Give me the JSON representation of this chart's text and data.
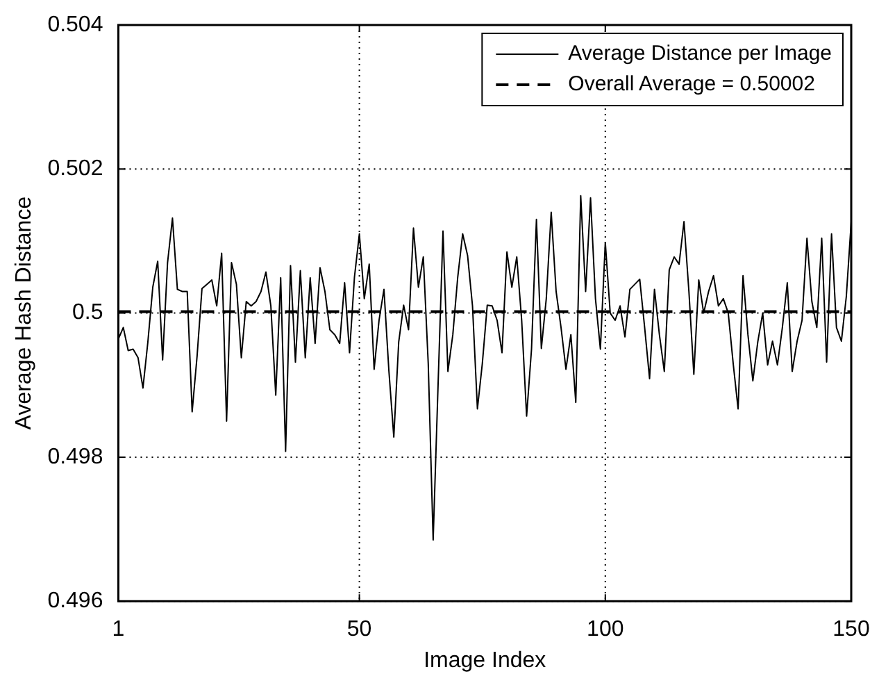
{
  "chart_data": {
    "type": "line",
    "xlabel": "Image Index",
    "ylabel": "Average Hash Distance",
    "xlim": [
      1,
      150
    ],
    "xticks": [
      1,
      50,
      100,
      150
    ],
    "ylim": [
      0.496,
      0.504
    ],
    "yticks": [
      0.496,
      0.498,
      0.5,
      0.502,
      0.504
    ],
    "grid": true,
    "legend": "top right",
    "marker": "none",
    "series": [
      {
        "name": "Average Distance per Image",
        "color": "#000000",
        "line_style": "solid",
        "x": [
          1,
          2,
          3,
          4,
          5,
          6,
          7,
          8,
          9,
          10,
          11,
          12,
          13,
          14,
          15,
          16,
          17,
          18,
          19,
          20,
          21,
          22,
          23,
          24,
          25,
          26,
          27,
          28,
          29,
          30,
          31,
          32,
          33,
          34,
          35,
          36,
          37,
          38,
          39,
          40,
          41,
          42,
          43,
          44,
          45,
          46,
          47,
          48,
          49,
          50,
          51,
          52,
          53,
          54,
          55,
          56,
          57,
          58,
          59,
          60,
          61,
          62,
          63,
          64,
          65,
          66,
          67,
          68,
          69,
          70,
          71,
          72,
          73,
          74,
          75,
          76,
          77,
          78,
          79,
          80,
          81,
          82,
          83,
          84,
          85,
          86,
          87,
          88,
          89,
          90,
          91,
          92,
          93,
          94,
          95,
          96,
          97,
          98,
          99,
          100,
          101,
          102,
          103,
          104,
          105,
          106,
          107,
          108,
          109,
          110,
          111,
          112,
          113,
          114,
          115,
          116,
          117,
          118,
          119,
          120,
          121,
          122,
          123,
          124,
          125,
          126,
          127,
          128,
          129,
          130,
          131,
          132,
          133,
          134,
          135,
          136,
          137,
          138,
          139,
          140,
          141,
          142,
          143,
          144,
          145,
          146,
          147,
          148,
          149,
          150
        ],
        "values": [
          0.49964,
          0.4998,
          0.49948,
          0.4995,
          0.49938,
          0.49896,
          0.4996,
          0.50036,
          0.50072,
          0.49935,
          0.5007,
          0.50132,
          0.50033,
          0.5003,
          0.5003,
          0.49863,
          0.4994,
          0.50034,
          0.5004,
          0.50046,
          0.5001,
          0.50083,
          0.4985,
          0.5007,
          0.5004,
          0.49938,
          0.50016,
          0.5001,
          0.50016,
          0.5003,
          0.50057,
          0.5001,
          0.49886,
          0.50049,
          0.49808,
          0.50066,
          0.49932,
          0.50059,
          0.49938,
          0.50049,
          0.49958,
          0.50063,
          0.5003,
          0.49977,
          0.4997,
          0.49958,
          0.50042,
          0.49945,
          0.5005,
          0.5011,
          0.5002,
          0.50068,
          0.49922,
          0.4999,
          0.50033,
          0.4992,
          0.49828,
          0.4996,
          0.50011,
          0.49977,
          0.50118,
          0.50036,
          0.50078,
          0.4993,
          0.49685,
          0.499,
          0.50114,
          0.49919,
          0.4997,
          0.5005,
          0.5011,
          0.5008,
          0.5001,
          0.49867,
          0.4993,
          0.50011,
          0.5001,
          0.4999,
          0.49945,
          0.50085,
          0.50036,
          0.50078,
          0.4999,
          0.49857,
          0.4995,
          0.5013,
          0.49951,
          0.5002,
          0.5014,
          0.5003,
          0.4998,
          0.49922,
          0.4997,
          0.49876,
          0.50163,
          0.5003,
          0.5016,
          0.5002,
          0.4995,
          0.50098,
          0.5,
          0.4999,
          0.5001,
          0.49967,
          0.50033,
          0.5004,
          0.50047,
          0.4998,
          0.49909,
          0.50033,
          0.4997,
          0.49919,
          0.5006,
          0.50078,
          0.50068,
          0.50127,
          0.5003,
          0.49915,
          0.50046,
          0.5,
          0.5003,
          0.50052,
          0.5001,
          0.5002,
          0.5,
          0.4993,
          0.49867,
          0.50052,
          0.4997,
          0.49906,
          0.4996,
          0.5,
          0.49928,
          0.49961,
          0.49928,
          0.4998,
          0.50042,
          0.49919,
          0.49961,
          0.4999,
          0.50104,
          0.50016,
          0.4998,
          0.50104,
          0.49932,
          0.5011,
          0.4998,
          0.49961,
          0.50023,
          0.50127
        ]
      },
      {
        "name": "Overall Average = 0.50002",
        "color": "#000000",
        "line_style": "dashed",
        "x": [
          1,
          150
        ],
        "values": [
          0.50002,
          0.50002
        ]
      }
    ]
  }
}
